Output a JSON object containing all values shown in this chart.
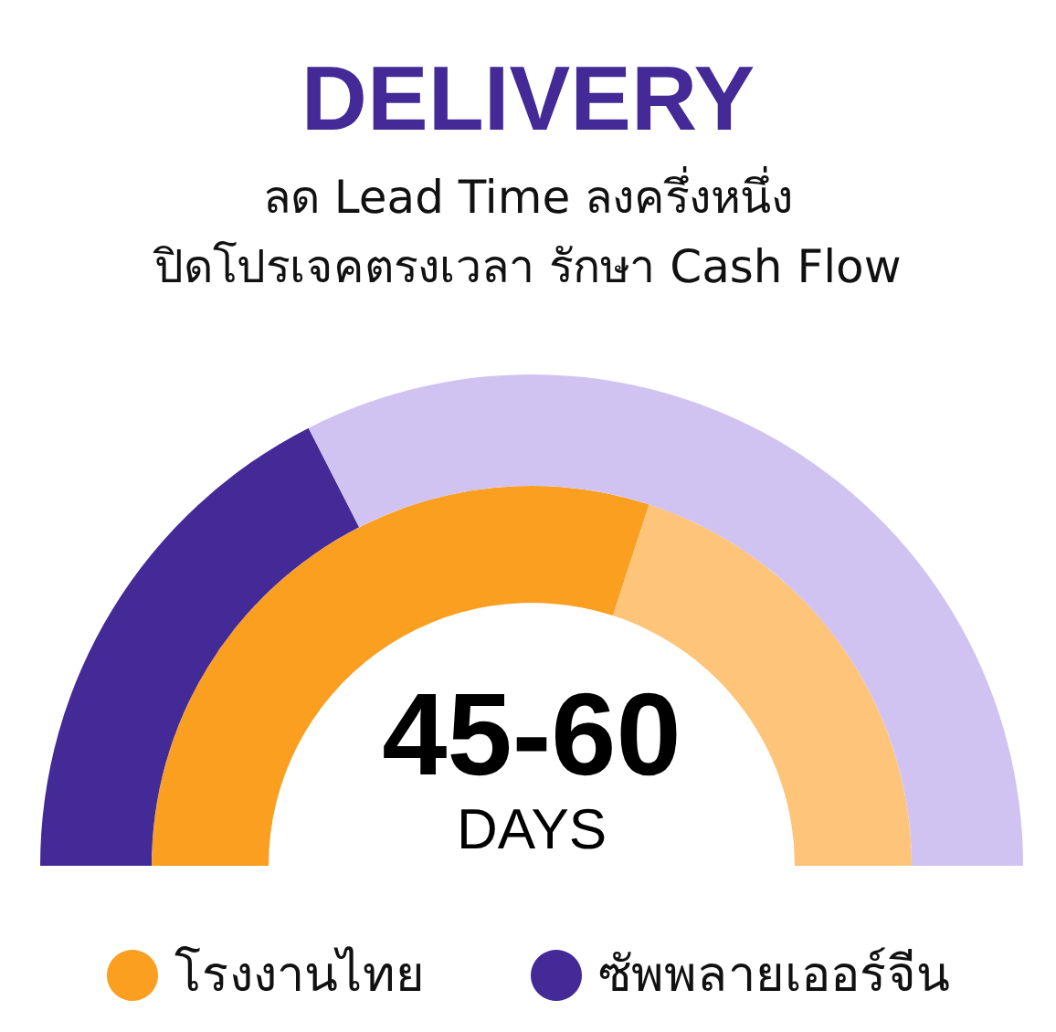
{
  "chart_data": {
    "type": "donut",
    "title": "DELIVERY",
    "subtitle": "ลด Lead Time ลงครึ่งหนึ่ง\nปิดโปรเจคตรงเวลา รักษา Cash Flow",
    "categories": [
      null,
      null
    ],
    "series": [
      {
        "name": "โรงงานไทย",
        "colors": [
          "#fb9f21",
          "#fec47a"
        ],
        "values": [
          60,
          40
        ]
      },
      {
        "name": "ซัพพลายเออร์จีน",
        "colors": [
          "#432a96",
          "#d1c3f1"
        ],
        "values": [
          35,
          65
        ]
      }
    ],
    "annotations": [
      "45-60",
      "DAYS"
    ],
    "legend": "bottom"
  }
}
